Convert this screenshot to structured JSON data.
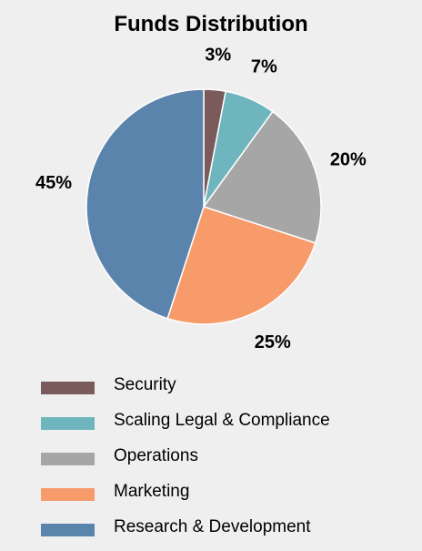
{
  "chart_data": {
    "type": "pie",
    "title": "Funds Distribution",
    "categories": [
      "Security",
      "Scaling Legal & Compliance",
      "Operations",
      "Marketing",
      "Research & Development"
    ],
    "values": [
      3,
      7,
      20,
      25,
      45
    ],
    "labels": [
      "3%",
      "7%",
      "20%",
      "25%",
      "45%"
    ],
    "colors": [
      "#7a5a5a",
      "#6fb5be",
      "#a6a6a6",
      "#f79b6b",
      "#5b84ad"
    ],
    "legend_position": "bottom",
    "start_angle": "top",
    "direction": "clockwise"
  }
}
